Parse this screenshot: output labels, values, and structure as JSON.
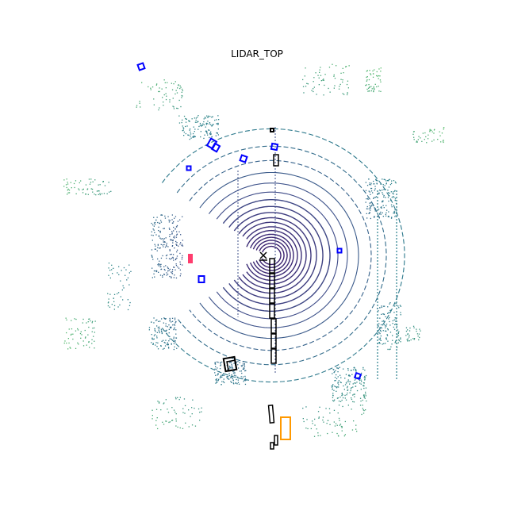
{
  "title": "LIDAR_TOP",
  "colors": {
    "ring_inner": "#3b1a6b",
    "ring_mid": "#3e4f8a",
    "ring_outer": "#2a7f8c",
    "far_green": "#5ec962",
    "car_box": "#0000ff",
    "barrier_box": "#000000",
    "pedestrian_box": "#ff9900",
    "bicycle_box": "#ff3d6e",
    "ego_marker": "#000000"
  },
  "icons": {
    "ego": "x-mark"
  }
}
